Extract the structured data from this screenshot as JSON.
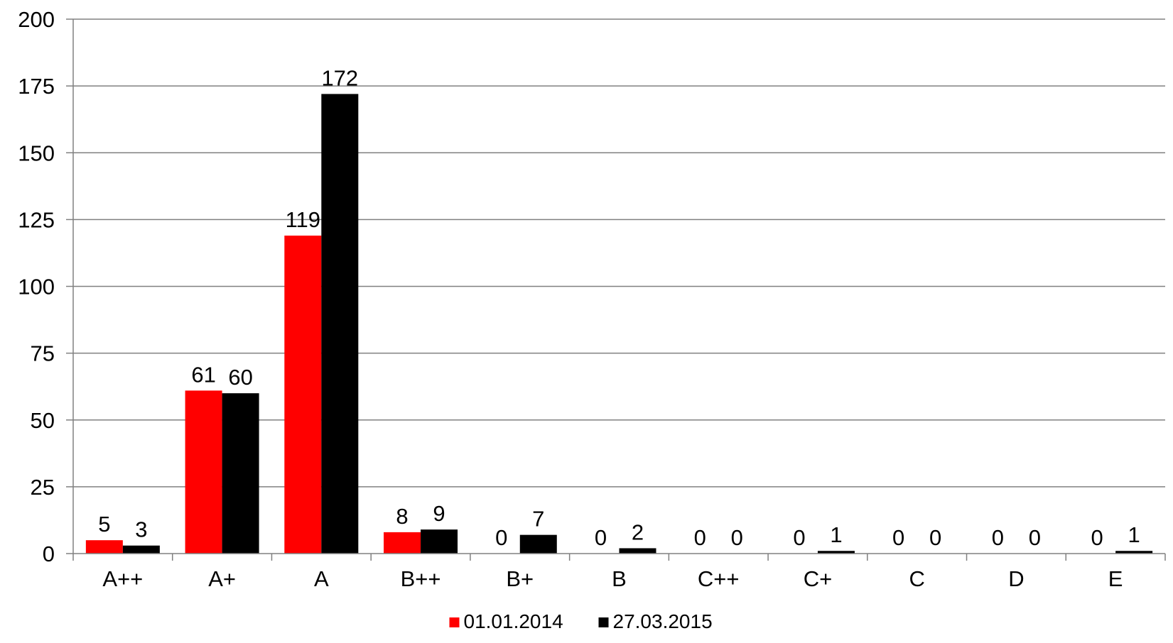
{
  "chart_data": {
    "type": "bar",
    "categories": [
      "A++",
      "A+",
      "A",
      "B++",
      "B+",
      "B",
      "C++",
      "C+",
      "C",
      "D",
      "E"
    ],
    "series": [
      {
        "name": "01.01.2014",
        "color": "#ff0000",
        "values": [
          5,
          61,
          119,
          8,
          0,
          0,
          0,
          0,
          0,
          0,
          0
        ]
      },
      {
        "name": "27.03.2015",
        "color": "#000000",
        "values": [
          3,
          60,
          172,
          9,
          7,
          2,
          0,
          1,
          0,
          0,
          1
        ]
      }
    ],
    "ylim": [
      0,
      200
    ],
    "yticks": [
      0,
      25,
      50,
      75,
      100,
      125,
      150,
      175,
      200
    ],
    "grid": true,
    "legend": "bottom"
  }
}
